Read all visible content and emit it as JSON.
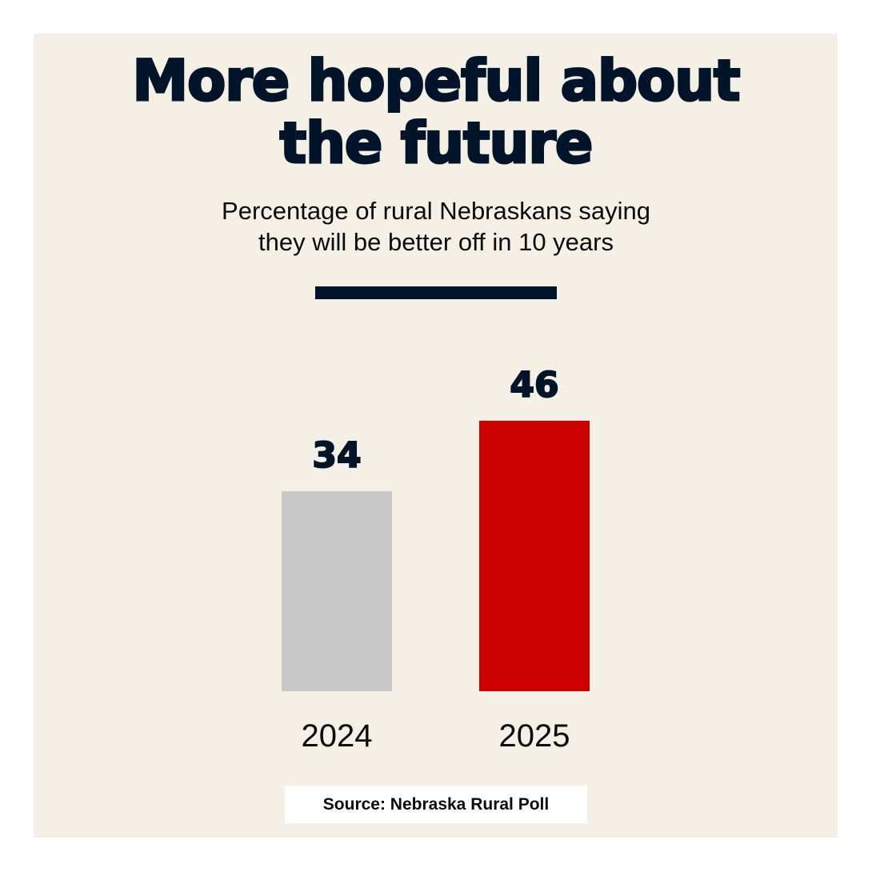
{
  "chart_data": {
    "type": "bar",
    "title": "More hopeful about the future",
    "title_lines": [
      "More hopeful about",
      "the future"
    ],
    "subtitle_lines": [
      "Percentage of rural Nebraskans saying",
      "they will be better off in 10 years"
    ],
    "categories": [
      "2024",
      "2025"
    ],
    "values": [
      34,
      46
    ],
    "colors": [
      "#c8c8c8",
      "#cc0000"
    ],
    "xlabel": "",
    "ylabel": "",
    "grid": false,
    "source": "Source: Nebraska Rural Poll"
  },
  "colors": {
    "background": "#f4f0e6",
    "text": "#02142a"
  }
}
